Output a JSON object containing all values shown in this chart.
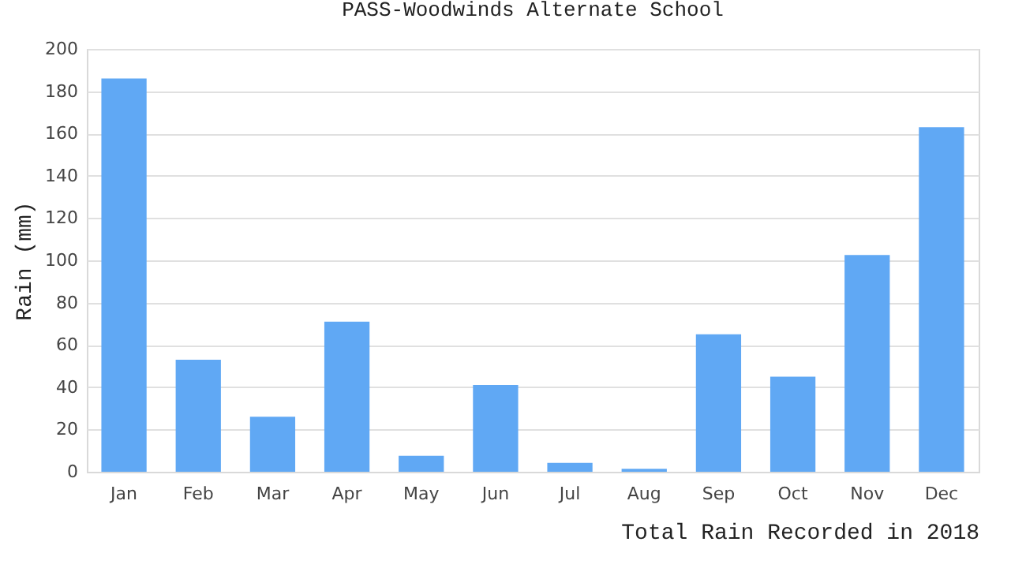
{
  "chart_data": {
    "type": "bar",
    "title": "PASS-Woodwinds Alternate School",
    "xlabel": "Total Rain Recorded in 2018",
    "ylabel": "Rain (mm)",
    "categories": [
      "Jan",
      "Feb",
      "Mar",
      "Apr",
      "May",
      "Jun",
      "Jul",
      "Aug",
      "Sep",
      "Oct",
      "Nov",
      "Dec"
    ],
    "values": [
      186,
      53,
      26,
      71,
      7.6,
      41,
      4.2,
      1.4,
      65,
      45,
      102.5,
      163
    ],
    "color": "#60a8f4",
    "ylim": [
      0,
      200
    ],
    "yticks": [
      0,
      20,
      40,
      60,
      80,
      100,
      120,
      140,
      160,
      180,
      200
    ],
    "grid": "y"
  }
}
